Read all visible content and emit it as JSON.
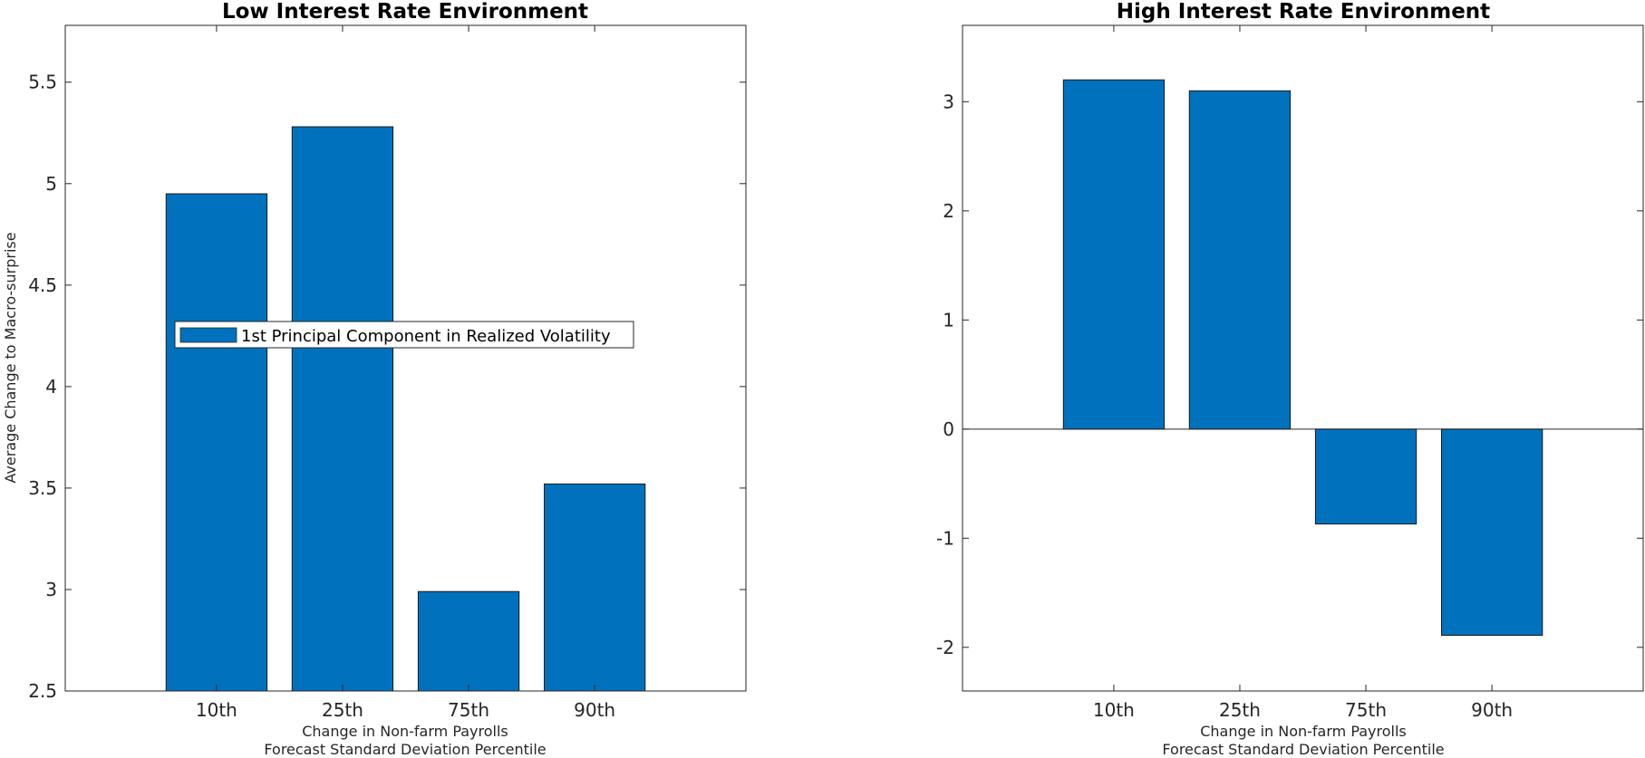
{
  "chart_data": [
    {
      "type": "bar",
      "title": "Low Interest Rate Environment",
      "categories": [
        "10th",
        "25th",
        "75th",
        "90th"
      ],
      "series": [
        {
          "name": "1st Principal Component in Realized Volatility",
          "values": [
            4.95,
            5.28,
            2.99,
            3.52
          ],
          "color": "#0072BD"
        }
      ],
      "xlabel": [
        "Change in Non-farm Payrolls",
        "Forecast Standard Deviation Percentile"
      ],
      "ylabel": "Average Change to Macro-surprise",
      "ylim": [
        2.5,
        5.78
      ],
      "yticks": [
        2.5,
        3,
        3.5,
        4,
        4.5,
        5,
        5.5
      ],
      "ytick_labels": [
        "2.5",
        "3",
        "3.5",
        "4",
        "4.5",
        "5",
        "5.5"
      ],
      "legend": {
        "position": "center-left",
        "entries": [
          "1st Principal Component in Realized Volatility"
        ]
      },
      "grid": false
    },
    {
      "type": "bar",
      "title": "High Interest Rate Environment",
      "categories": [
        "10th",
        "25th",
        "75th",
        "90th"
      ],
      "series": [
        {
          "values": [
            3.2,
            3.1,
            -0.87,
            -1.89
          ],
          "color": "#0072BD"
        }
      ],
      "xlabel": [
        "Change in Non-farm Payrolls",
        "Forecast Standard Deviation Percentile"
      ],
      "ylabel": "",
      "ylim": [
        -2.4,
        3.7
      ],
      "yticks": [
        -2,
        -1,
        0,
        1,
        2,
        3
      ],
      "ytick_labels": [
        "-2",
        "-1",
        "0",
        "1",
        "2",
        "3"
      ],
      "baseline": 0,
      "grid": false
    }
  ]
}
